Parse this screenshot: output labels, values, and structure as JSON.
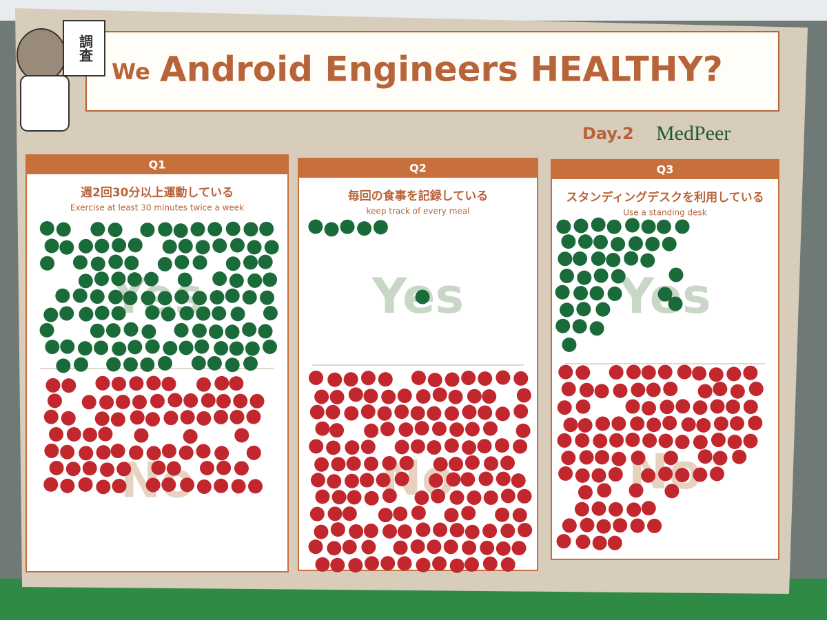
{
  "header": {
    "stamp": "調査",
    "we": "We",
    "title": "Android Engineers HEALTHY?",
    "day": "Day.2",
    "brand": "MedPeer"
  },
  "panels": [
    {
      "label": "Q1",
      "question": "週2回30分以上運動している",
      "english": "Exercise at least 30 minutes twice a week",
      "yes": "Yes",
      "no": "No"
    },
    {
      "label": "Q2",
      "question": "毎回の食事を記録している",
      "english": "keep track of every meal",
      "yes": "Yes",
      "no": "No"
    },
    {
      "label": "Q3",
      "question": "スタンディングデスクを利用している",
      "english": "Use a standing desk",
      "yes": "Yes",
      "no": "No"
    }
  ]
}
